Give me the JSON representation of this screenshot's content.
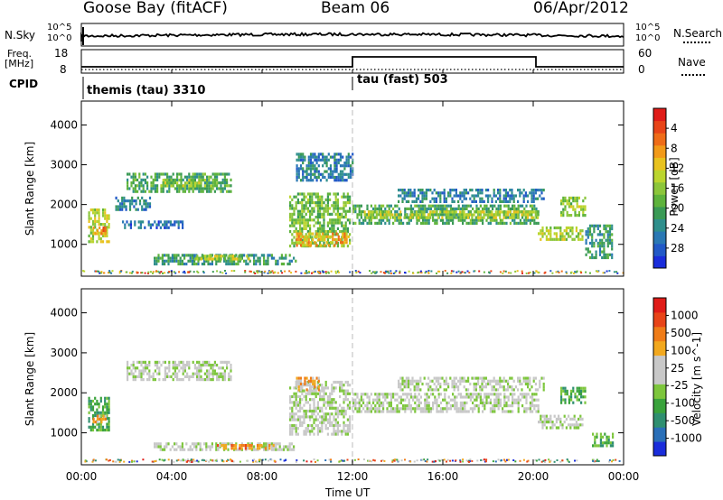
{
  "header": {
    "site": "Goose Bay (fitACF)",
    "beam": "Beam 06",
    "date": "06/Apr/2012"
  },
  "strip": {
    "nsky_label": "N.Sky",
    "nsky_ticks": [
      "10^5",
      "10^0"
    ],
    "nsearch_label": "N.Search",
    "nsearch_ticks": [
      "10^5",
      "10^0"
    ],
    "freq_label_line1": "Freq.",
    "freq_label_line2": "[MHz]",
    "freq_ticks": [
      "18",
      "8"
    ],
    "nave_label": "Nave",
    "nave_ticks": [
      "60",
      "0"
    ],
    "cpid_label": "CPID",
    "cpid_segments": [
      {
        "text": "themis (tau) 3310",
        "start_hour": 0
      },
      {
        "text": "tau (fast) 503",
        "start_hour": 12
      }
    ]
  },
  "chart_data": [
    {
      "type": "heatmap",
      "title": "",
      "xlabel": "Time UT",
      "ylabel": "Slant Range [km]",
      "xlim": [
        0,
        24
      ],
      "ylim": [
        200,
        4600
      ],
      "x_tick_labels": [
        "00:00",
        "04:00",
        "08:00",
        "12:00",
        "16:00",
        "20:00",
        "00:00"
      ],
      "y_ticks": [
        1000,
        2000,
        3000,
        4000
      ],
      "colorbar": {
        "label": "Power [dB]",
        "tick_labels": [
          "4",
          "8",
          "12",
          "16",
          "20",
          "24",
          "28"
        ],
        "colors": [
          "#1a2ddb",
          "#2259c7",
          "#2a78b4",
          "#2f8f8c",
          "#3a9a55",
          "#5eb33c",
          "#8cc63a",
          "#bbd52e",
          "#e8c21e",
          "#f29a19",
          "#ef6c18",
          "#e84418",
          "#e01c18"
        ]
      },
      "regions": [
        {
          "t": [
            0.3,
            1.2
          ],
          "r": [
            1050,
            1900
          ],
          "level": 0.55
        },
        {
          "t": [
            0.5,
            1.1
          ],
          "r": [
            1250,
            1450
          ],
          "level": 0.8
        },
        {
          "t": [
            1.5,
            3.0
          ],
          "r": [
            1900,
            2200
          ],
          "level": 0.2
        },
        {
          "t": [
            2.0,
            6.6
          ],
          "r": [
            2300,
            2800
          ],
          "level": 0.35
        },
        {
          "t": [
            3.5,
            6.0
          ],
          "r": [
            2500,
            2650
          ],
          "level": 0.5
        },
        {
          "t": [
            1.8,
            4.5
          ],
          "r": [
            1450,
            1600
          ],
          "level": 0.15
        },
        {
          "t": [
            3.2,
            9.5
          ],
          "r": [
            480,
            760
          ],
          "level": 0.3
        },
        {
          "t": [
            5.0,
            7.5
          ],
          "r": [
            640,
            740
          ],
          "level": 0.55
        },
        {
          "t": [
            9.2,
            11.9
          ],
          "r": [
            950,
            2300
          ],
          "level": 0.45
        },
        {
          "t": [
            9.5,
            11.8
          ],
          "r": [
            1000,
            1300
          ],
          "level": 0.7
        },
        {
          "t": [
            9.5,
            12.0
          ],
          "r": [
            2600,
            3300
          ],
          "level": 0.2
        },
        {
          "t": [
            12.0,
            20.2
          ],
          "r": [
            1500,
            2000
          ],
          "level": 0.35
        },
        {
          "t": [
            12.5,
            20.2
          ],
          "r": [
            1650,
            1850
          ],
          "level": 0.55
        },
        {
          "t": [
            14.0,
            20.5
          ],
          "r": [
            2050,
            2400
          ],
          "level": 0.2
        },
        {
          "t": [
            20.2,
            22.2
          ],
          "r": [
            1150,
            1450
          ],
          "level": 0.55
        },
        {
          "t": [
            21.2,
            22.3
          ],
          "r": [
            1700,
            2200
          ],
          "level": 0.5
        },
        {
          "t": [
            22.3,
            23.5
          ],
          "r": [
            650,
            1500
          ],
          "level": 0.3
        }
      ]
    },
    {
      "type": "heatmap",
      "title": "",
      "xlabel": "Time UT",
      "ylabel": "Slant Range [km]",
      "xlim": [
        0,
        24
      ],
      "ylim": [
        200,
        4600
      ],
      "x_tick_labels": [
        "00:00",
        "04:00",
        "08:00",
        "12:00",
        "16:00",
        "20:00",
        "00:00"
      ],
      "y_ticks": [
        1000,
        2000,
        3000,
        4000
      ],
      "colorbar": {
        "label": "Velocity [m s^-1]",
        "tick_labels": [
          "1000",
          "500",
          "100",
          "25",
          "-25",
          "-100",
          "-500",
          "-1000"
        ],
        "colors": [
          "#1a2ddb",
          "#2a6fb8",
          "#2f8f70",
          "#3aa33c",
          "#7dc63c",
          "#c8c8c8",
          "#c8c8c8",
          "#f2a81e",
          "#ef7c18",
          "#e84418",
          "#e01c18"
        ]
      },
      "regions": [
        {
          "t": [
            0.3,
            1.2
          ],
          "r": [
            1050,
            1900
          ],
          "level": 0.3
        },
        {
          "t": [
            0.5,
            1.1
          ],
          "r": [
            1250,
            1450
          ],
          "level": 0.7
        },
        {
          "t": [
            2.0,
            6.6
          ],
          "r": [
            2300,
            2800
          ],
          "level": 0.5
        },
        {
          "t": [
            3.2,
            9.5
          ],
          "r": [
            550,
            760
          ],
          "level": 0.5
        },
        {
          "t": [
            6.0,
            8.5
          ],
          "r": [
            600,
            720
          ],
          "level": 0.75
        },
        {
          "t": [
            9.2,
            11.9
          ],
          "r": [
            1000,
            2300
          ],
          "level": 0.5
        },
        {
          "t": [
            9.5,
            10.5
          ],
          "r": [
            2100,
            2400
          ],
          "level": 0.7
        },
        {
          "t": [
            12.0,
            20.2
          ],
          "r": [
            1500,
            2000
          ],
          "level": 0.5
        },
        {
          "t": [
            14.0,
            20.5
          ],
          "r": [
            2050,
            2400
          ],
          "level": 0.5
        },
        {
          "t": [
            20.2,
            22.2
          ],
          "r": [
            1150,
            1450
          ],
          "level": 0.5
        },
        {
          "t": [
            21.2,
            22.3
          ],
          "r": [
            1750,
            2150
          ],
          "level": 0.3
        },
        {
          "t": [
            22.6,
            23.5
          ],
          "r": [
            650,
            1000
          ],
          "level": 0.3
        }
      ]
    }
  ]
}
